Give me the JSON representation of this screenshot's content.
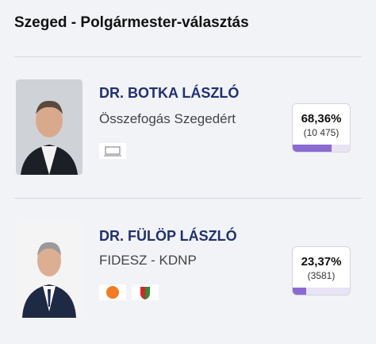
{
  "header": {
    "title": "Szeged - Polgármester-választás"
  },
  "candidates": [
    {
      "name": "DR. BOTKA LÁSZLÓ",
      "party": "Összefogás Szegedért",
      "percent": {
        "value": 68.36,
        "label": "68,36%"
      },
      "votes": "(10 475)"
    },
    {
      "name": "DR. FÜLÖP LÁSZLÓ",
      "party": "FIDESZ - KDNP",
      "percent": {
        "value": 23.37,
        "label": "23,37%"
      },
      "votes": "(3581)"
    }
  ]
}
